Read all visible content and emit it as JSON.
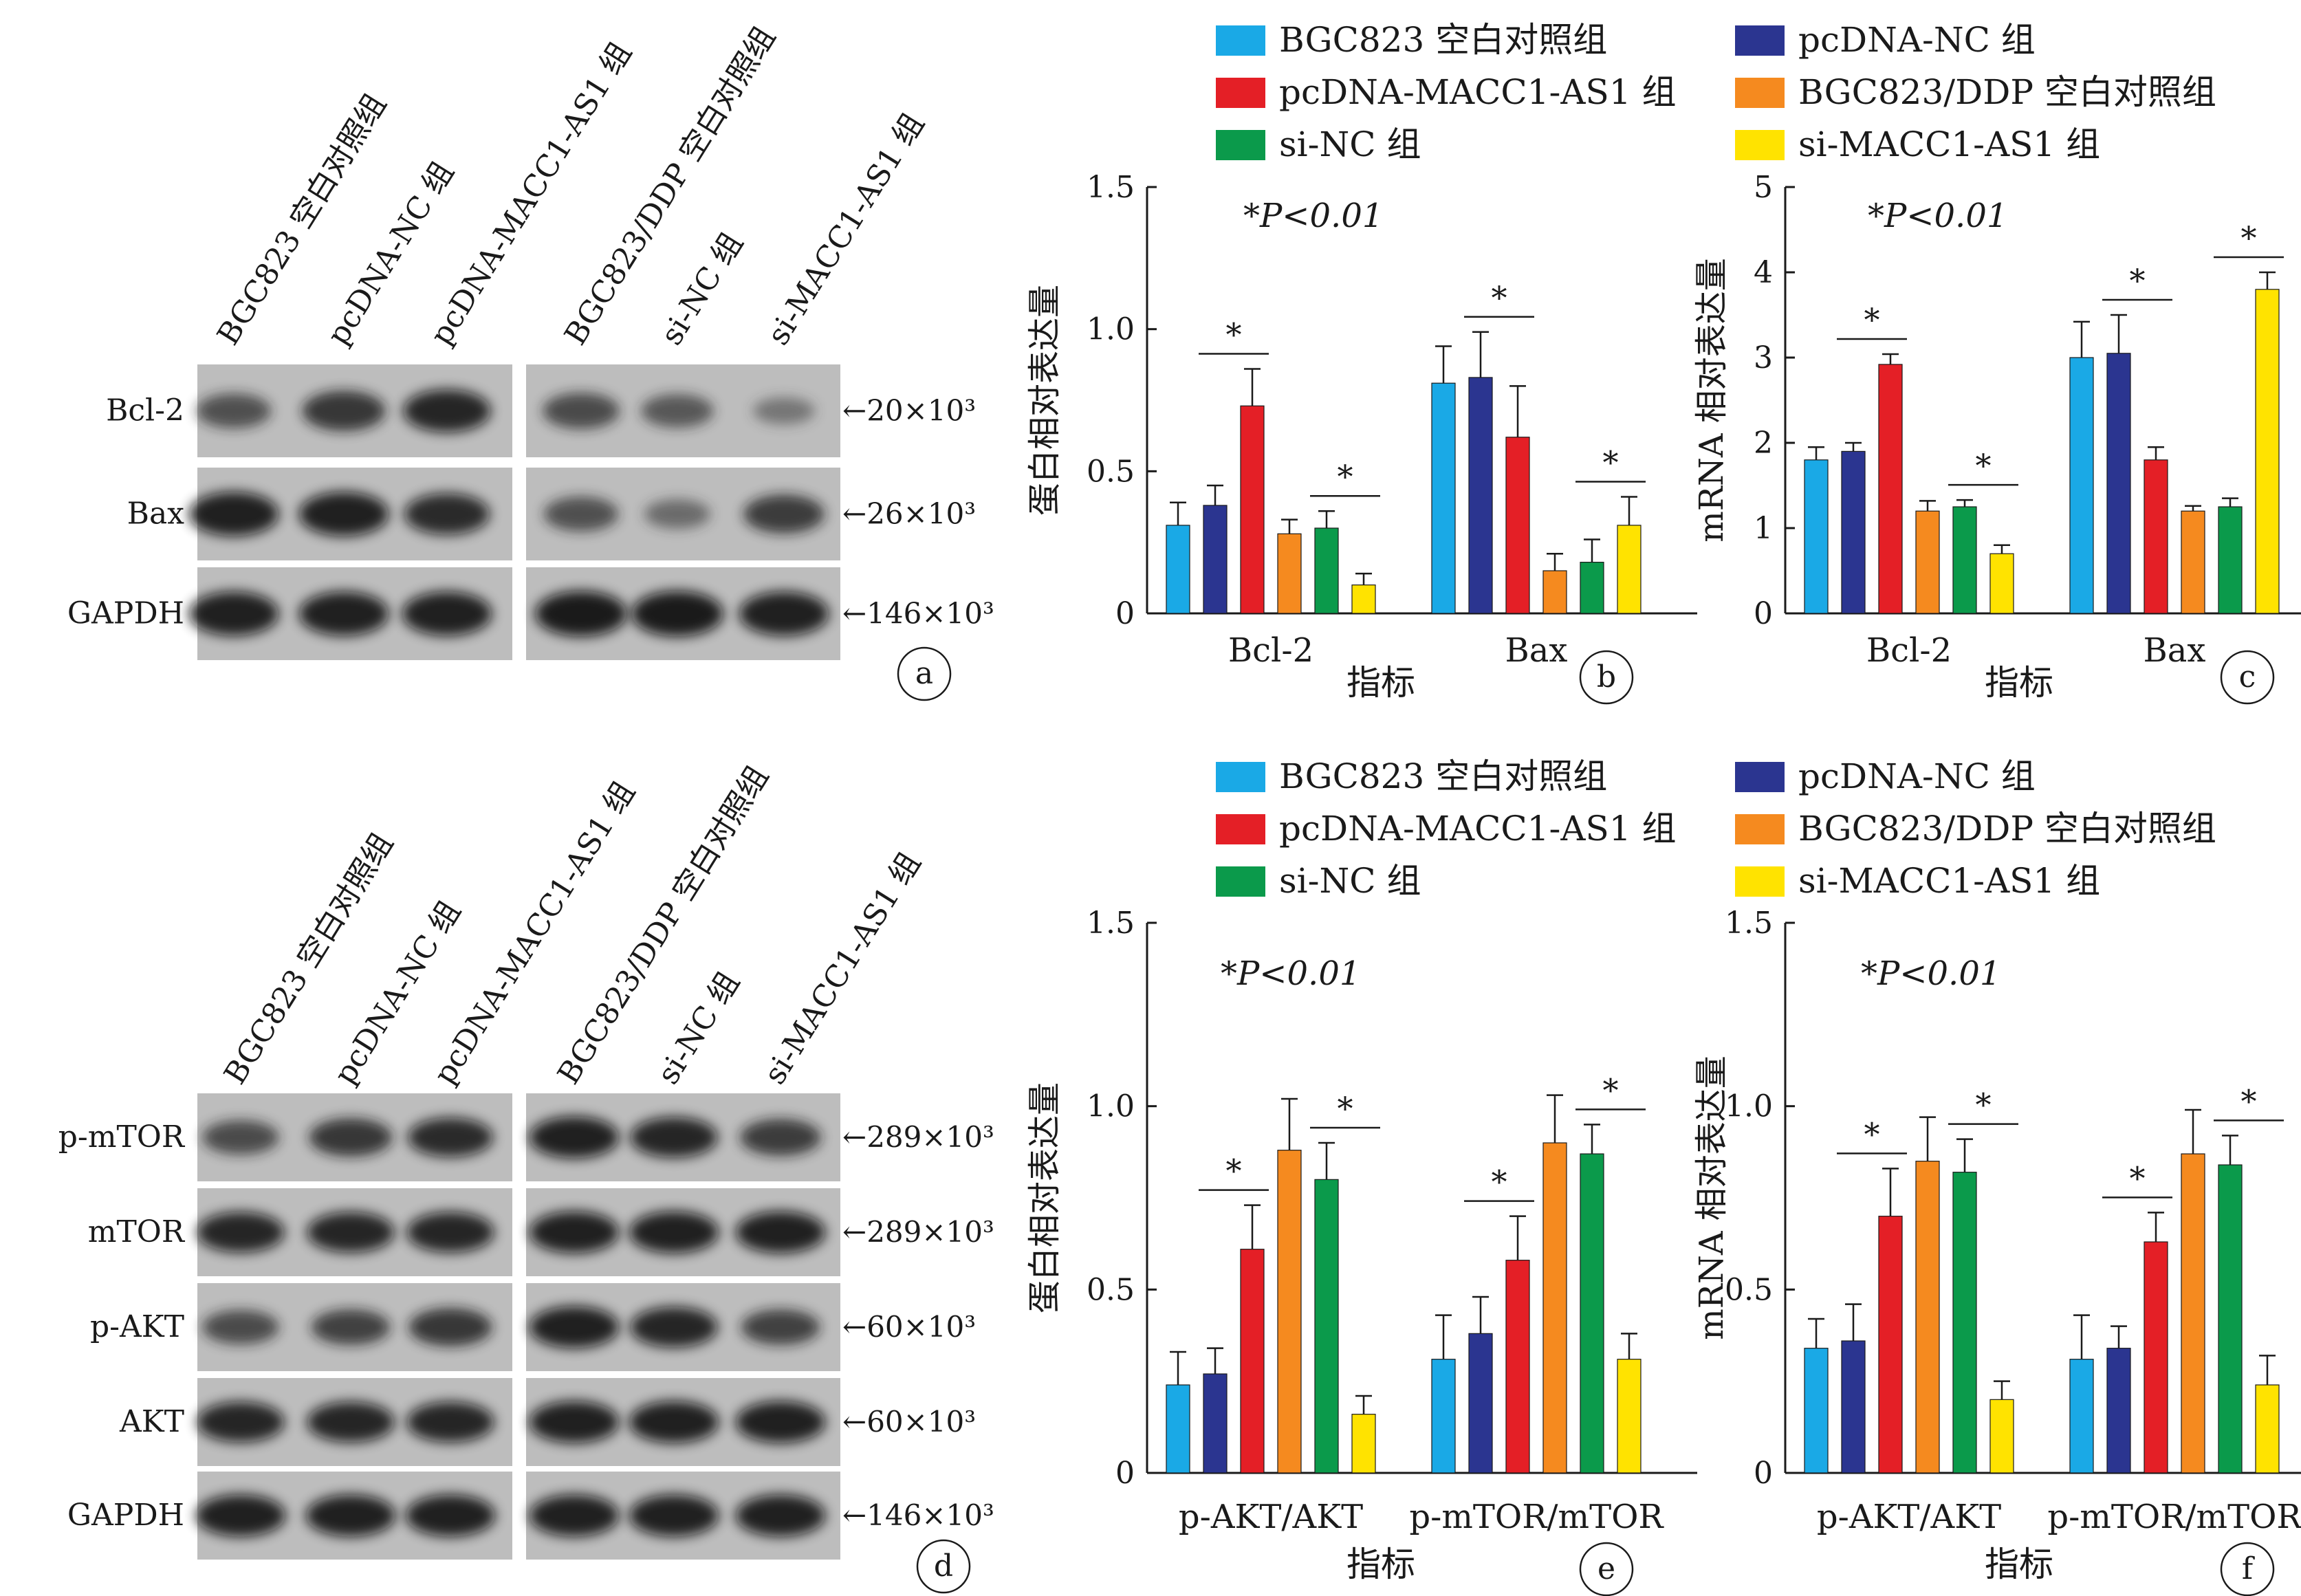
{
  "colors": {
    "BGC823 空白对照组": "#1aa9e6",
    "pcDNA-NC 组": "#2b3590",
    "pcDNA-MACC1-AS1 组": "#e41f26",
    "BGC823/DDP 空白对照组": "#f58a1f",
    "si-NC 组": "#0b9a4b",
    "si-MACC1-AS1 组": "#ffe300"
  },
  "legend": [
    "BGC823 空白对照组",
    "pcDNA-NC 组",
    "pcDNA-MACC1-AS1 组",
    "BGC823/DDP 空白对照组",
    "si-NC 组",
    "si-MACC1-AS1 组"
  ],
  "blots": {
    "top": {
      "panel_label": "a",
      "lanes": [
        "BGC823 空白对照组",
        "pcDNA-NC 组",
        "pcDNA-MACC1-AS1 组",
        "BGC823/DDP 空白对照组",
        "si-NC 组",
        "si-MACC1-AS1 组"
      ],
      "rows": [
        {
          "name": "Bcl-2",
          "mw": "←20×10³",
          "intensity": [
            0.55,
            0.75,
            0.85,
            0.6,
            0.5,
            0.25
          ]
        },
        {
          "name": "Bax",
          "mw": "←26×10³",
          "intensity": [
            0.9,
            0.9,
            0.8,
            0.55,
            0.35,
            0.7
          ]
        },
        {
          "name": "GAPDH",
          "mw": "←146×10³",
          "intensity": [
            0.9,
            0.9,
            0.9,
            0.95,
            0.95,
            0.9
          ]
        }
      ]
    },
    "bottom": {
      "panel_label": "d",
      "lanes": [
        "BGC823 空白对照组",
        "pcDNA-NC 组",
        "pcDNA-MACC1-AS1 组",
        "BGC823/DDP 空白对照组",
        "si-NC 组",
        "si-MACC1-AS1 组"
      ],
      "rows": [
        {
          "name": "p-mTOR",
          "mw": "←289×10³",
          "intensity": [
            0.6,
            0.75,
            0.8,
            0.9,
            0.85,
            0.7
          ]
        },
        {
          "name": "mTOR",
          "mw": "←289×10³",
          "intensity": [
            0.85,
            0.85,
            0.85,
            0.9,
            0.9,
            0.9
          ]
        },
        {
          "name": "p-AKT",
          "mw": "←60×10³",
          "intensity": [
            0.6,
            0.65,
            0.75,
            0.9,
            0.85,
            0.65
          ]
        },
        {
          "name": "AKT",
          "mw": "←60×10³",
          "intensity": [
            0.85,
            0.85,
            0.85,
            0.9,
            0.9,
            0.9
          ]
        },
        {
          "name": "GAPDH",
          "mw": "←146×10³",
          "intensity": [
            0.9,
            0.9,
            0.9,
            0.9,
            0.9,
            0.9
          ]
        }
      ]
    }
  },
  "chart_data": [
    {
      "panel_label": "b",
      "type": "bar",
      "ylabel": "蛋白相对表达量",
      "xlabel": "指标",
      "ylim": [
        0,
        1.5
      ],
      "yticks": [
        "0",
        "0.5",
        "1.0",
        "1.5"
      ],
      "annotation": "*P<0.01",
      "categories": [
        "Bcl-2",
        "Bax"
      ],
      "series": [
        {
          "name": "BGC823 空白对照组",
          "values": [
            0.31,
            0.81
          ],
          "errors": [
            0.08,
            0.13
          ]
        },
        {
          "name": "pcDNA-NC 组",
          "values": [
            0.38,
            0.83
          ],
          "errors": [
            0.07,
            0.16
          ]
        },
        {
          "name": "pcDNA-MACC1-AS1 组",
          "values": [
            0.73,
            0.62
          ],
          "errors": [
            0.13,
            0.18
          ]
        },
        {
          "name": "BGC823/DDP 空白对照组",
          "values": [
            0.28,
            0.15
          ],
          "errors": [
            0.05,
            0.06
          ]
        },
        {
          "name": "si-NC 组",
          "values": [
            0.3,
            0.18
          ],
          "errors": [
            0.06,
            0.08
          ]
        },
        {
          "name": "si-MACC1-AS1 组",
          "values": [
            0.1,
            0.31
          ],
          "errors": [
            0.04,
            0.1
          ]
        }
      ],
      "significance": [
        [
          0,
          1,
          2
        ],
        [
          0,
          4,
          5
        ],
        [
          1,
          1,
          2
        ],
        [
          1,
          4,
          5
        ]
      ]
    },
    {
      "panel_label": "c",
      "type": "bar",
      "ylabel": "mRNA 相对表达量",
      "xlabel": "指标",
      "ylim": [
        0,
        5
      ],
      "yticks": [
        "0",
        "1",
        "2",
        "3",
        "4",
        "5"
      ],
      "annotation": "*P<0.01",
      "categories": [
        "Bcl-2",
        "Bax"
      ],
      "series": [
        {
          "name": "BGC823 空白对照组",
          "values": [
            1.8,
            3.0
          ],
          "errors": [
            0.15,
            0.42
          ]
        },
        {
          "name": "pcDNA-NC 组",
          "values": [
            1.9,
            3.05
          ],
          "errors": [
            0.1,
            0.45
          ]
        },
        {
          "name": "pcDNA-MACC1-AS1 组",
          "values": [
            2.92,
            1.8
          ],
          "errors": [
            0.12,
            0.15
          ]
        },
        {
          "name": "BGC823/DDP 空白对照组",
          "values": [
            1.2,
            1.2
          ],
          "errors": [
            0.12,
            0.06
          ]
        },
        {
          "name": "si-NC 组",
          "values": [
            1.25,
            1.25
          ],
          "errors": [
            0.08,
            0.1
          ]
        },
        {
          "name": "si-MACC1-AS1 组",
          "values": [
            0.7,
            3.8
          ],
          "errors": [
            0.1,
            0.2
          ]
        }
      ],
      "significance": [
        [
          0,
          1,
          2
        ],
        [
          0,
          4,
          5
        ],
        [
          1,
          1,
          2
        ],
        [
          1,
          4,
          5
        ]
      ]
    },
    {
      "panel_label": "e",
      "type": "bar",
      "ylabel": "蛋白相对表达量",
      "xlabel": "指标",
      "ylim": [
        0,
        1.5
      ],
      "yticks": [
        "0",
        "0.5",
        "1.0",
        "1.5"
      ],
      "annotation": "*P<0.01",
      "categories": [
        "p-AKT/AKT",
        "p-mTOR/mTOR"
      ],
      "series": [
        {
          "name": "BGC823 空白对照组",
          "values": [
            0.24,
            0.31
          ],
          "errors": [
            0.09,
            0.12
          ]
        },
        {
          "name": "pcDNA-NC 组",
          "values": [
            0.27,
            0.38
          ],
          "errors": [
            0.07,
            0.1
          ]
        },
        {
          "name": "pcDNA-MACC1-AS1 组",
          "values": [
            0.61,
            0.58
          ],
          "errors": [
            0.12,
            0.12
          ]
        },
        {
          "name": "BGC823/DDP 空白对照组",
          "values": [
            0.88,
            0.9
          ],
          "errors": [
            0.14,
            0.13
          ]
        },
        {
          "name": "si-NC 组",
          "values": [
            0.8,
            0.87
          ],
          "errors": [
            0.1,
            0.08
          ]
        },
        {
          "name": "si-MACC1-AS1 组",
          "values": [
            0.16,
            0.31
          ],
          "errors": [
            0.05,
            0.07
          ]
        }
      ],
      "significance": [
        [
          0,
          1,
          2
        ],
        [
          0,
          4,
          5
        ],
        [
          1,
          1,
          2
        ],
        [
          1,
          4,
          5
        ]
      ]
    },
    {
      "panel_label": "f",
      "type": "bar",
      "ylabel": "mRNA 相对表达量",
      "xlabel": "指标",
      "ylim": [
        0,
        1.5
      ],
      "yticks": [
        "0",
        "0.5",
        "1.0",
        "1.5"
      ],
      "annotation": "*P<0.01",
      "categories": [
        "p-AKT/AKT",
        "p-mTOR/mTOR"
      ],
      "series": [
        {
          "name": "BGC823 空白对照组",
          "values": [
            0.34,
            0.31
          ],
          "errors": [
            0.08,
            0.12
          ]
        },
        {
          "name": "pcDNA-NC 组",
          "values": [
            0.36,
            0.34
          ],
          "errors": [
            0.1,
            0.06
          ]
        },
        {
          "name": "pcDNA-MACC1-AS1 组",
          "values": [
            0.7,
            0.63
          ],
          "errors": [
            0.13,
            0.08
          ]
        },
        {
          "name": "BGC823/DDP 空白对照组",
          "values": [
            0.85,
            0.87
          ],
          "errors": [
            0.12,
            0.12
          ]
        },
        {
          "name": "si-NC 组",
          "values": [
            0.82,
            0.84
          ],
          "errors": [
            0.09,
            0.08
          ]
        },
        {
          "name": "si-MACC1-AS1 组",
          "values": [
            0.2,
            0.24
          ],
          "errors": [
            0.05,
            0.08
          ]
        }
      ],
      "significance": [
        [
          0,
          1,
          2
        ],
        [
          0,
          4,
          5
        ],
        [
          1,
          1,
          2
        ],
        [
          1,
          4,
          5
        ]
      ]
    }
  ]
}
